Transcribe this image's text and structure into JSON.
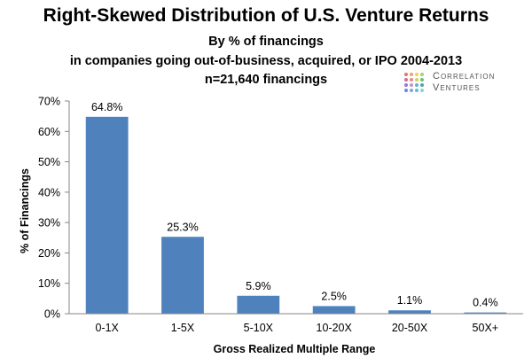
{
  "title": "Right-Skewed Distribution of U.S. Venture Returns",
  "subtitle_lines": [
    "By % of financings",
    "in companies going out-of-business, acquired, or IPO 2004-2013",
    "n=21,640 financings"
  ],
  "logo": {
    "line1": "Correlation",
    "line2": "Ventures"
  },
  "chart_data": {
    "type": "bar",
    "title": "Right-Skewed Distribution of U.S. Venture Returns",
    "categories": [
      "0-1X",
      "1-5X",
      "5-10X",
      "10-20X",
      "20-50X",
      "50X+"
    ],
    "values": [
      64.8,
      25.3,
      5.9,
      2.5,
      1.1,
      0.4
    ],
    "data_labels": [
      "64.8%",
      "25.3%",
      "5.9%",
      "2.5%",
      "1.1%",
      "0.4%"
    ],
    "xlabel": "Gross Realized Multiple Range",
    "ylabel": "% of Financings",
    "ylim": [
      0,
      70
    ],
    "yticks": [
      0,
      10,
      20,
      30,
      40,
      50,
      60,
      70
    ],
    "ytick_labels": [
      "0%",
      "10%",
      "20%",
      "30%",
      "40%",
      "50%",
      "60%",
      "70%"
    ],
    "bar_color": "#4f81bd",
    "grid": false,
    "legend": "none"
  }
}
